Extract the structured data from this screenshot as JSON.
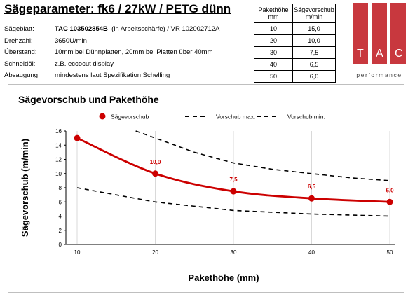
{
  "header": {
    "title": "Sägeparameter: fk6 / 27kW / PETG dünn"
  },
  "params": [
    {
      "key": "Sägeblatt:",
      "bold": "TAC 103502854B",
      "rest": "  (in Arbeitsschärfe) / VR 102002712A"
    },
    {
      "key": "Drehzahl:",
      "bold": "",
      "rest": "3650U/min"
    },
    {
      "key": "Überstand:",
      "bold": "",
      "rest": "10mm bei Dünnplatten, 20mm bei Platten über 40mm"
    },
    {
      "key": "Schneidöl:",
      "bold": "",
      "rest": "z.B. eccocut display"
    },
    {
      "key": "Absaugung:",
      "bold": "",
      "rest": "mindestens laut Spezifikation Schelling"
    }
  ],
  "table": {
    "headers": [
      "Pakethöhe mm",
      "Sägevorschub m/min"
    ],
    "header_lines": [
      [
        "Pakethöhe",
        "mm"
      ],
      [
        "Sägevorschub",
        "m/min"
      ]
    ],
    "rows": [
      [
        "10",
        "15,0"
      ],
      [
        "20",
        "10,0"
      ],
      [
        "30",
        "7,5"
      ],
      [
        "40",
        "6,5"
      ],
      [
        "50",
        "6,0"
      ]
    ]
  },
  "logo": {
    "letters": [
      "T",
      "A",
      "C"
    ],
    "tagline": "performance",
    "color": "#c8383e"
  },
  "chart_data": {
    "type": "line",
    "title": "Sägevorschub und Pakethöhe",
    "xlabel": "Pakethöhe (mm)",
    "ylabel": "Sägevorschub (m/min)",
    "x": [
      10,
      20,
      30,
      40,
      50
    ],
    "xticks": [
      "10",
      "20",
      "30",
      "40",
      "50"
    ],
    "yticks": [
      "0",
      "2",
      "4",
      "6",
      "8",
      "10",
      "12",
      "14",
      "16"
    ],
    "xlim": [
      10,
      50
    ],
    "ylim": [
      0,
      16
    ],
    "grid": "vertical",
    "legend_position": "top",
    "series": [
      {
        "name": "Sägevorschub",
        "x": [
          10,
          20,
          30,
          40,
          50
        ],
        "values": [
          15.0,
          10.0,
          7.5,
          6.5,
          6.0
        ],
        "labels": [
          "",
          "10,0",
          "7,5",
          "6,5",
          "6,0"
        ],
        "color": "#cc0000",
        "style": "solid-markers"
      },
      {
        "name": "Vorschub max.",
        "x": [
          17.5,
          20,
          25,
          30,
          35,
          40,
          45,
          50
        ],
        "values": [
          16,
          15.0,
          13.0,
          11.5,
          10.6,
          10.0,
          9.4,
          9.0
        ],
        "color": "#000000",
        "style": "dashed"
      },
      {
        "name": "Vorschub min.",
        "x": [
          10,
          20,
          30,
          40,
          50
        ],
        "values": [
          8.0,
          6.0,
          4.8,
          4.3,
          4.0
        ],
        "color": "#000000",
        "style": "dashed"
      }
    ]
  }
}
